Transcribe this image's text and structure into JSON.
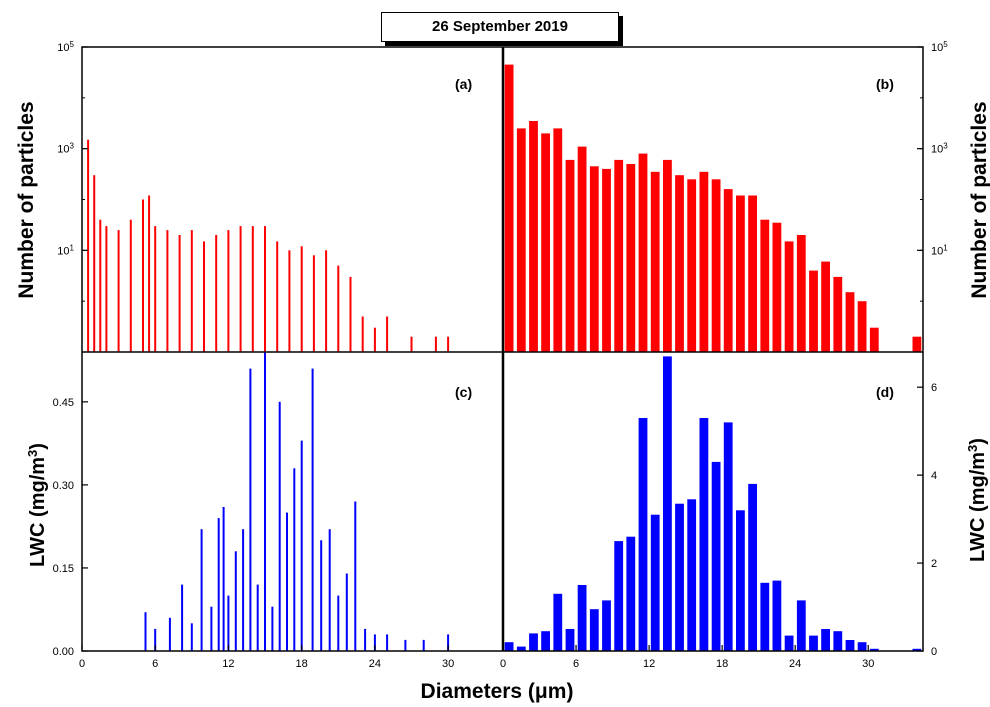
{
  "figure": {
    "title": "26 September 2019",
    "xlabel": "Diameters (μm)",
    "ylabel_left_top": "Number of particles",
    "ylabel_right_top": "Number of particles",
    "ylabel_left_bottom": "LWC (mg/m3)",
    "ylabel_right_bottom": "LWC (mg/m3)",
    "colors": {
      "red": "#ff0000",
      "blue": "#0000ff",
      "axes": "#000000"
    }
  },
  "chart_data": [
    {
      "panel": "(a)",
      "type": "bar",
      "scale": "log",
      "color": "#ff0000",
      "xlim": [
        0,
        34.5
      ],
      "ylim": [
        0.1,
        100000
      ],
      "yticks": [
        "10^1",
        "10^3",
        "10^5"
      ],
      "xticks": [
        0,
        6,
        12,
        18,
        24,
        30
      ],
      "x": [
        0.5,
        1,
        1.5,
        2,
        3,
        4,
        5,
        5.5,
        6,
        7,
        8,
        9,
        10,
        11,
        12,
        13,
        14,
        15,
        16,
        17,
        18,
        19,
        20,
        21,
        22,
        23,
        24,
        25,
        27,
        29,
        30
      ],
      "values": [
        1500,
        300,
        40,
        30,
        25,
        40,
        100,
        120,
        30,
        25,
        20,
        25,
        15,
        20,
        25,
        30,
        30,
        30,
        15,
        10,
        12,
        8,
        10,
        5,
        3,
        0.5,
        0.3,
        0.5,
        0.2,
        0.2,
        0.2
      ]
    },
    {
      "panel": "(b)",
      "type": "bar",
      "scale": "log",
      "color": "#ff0000",
      "xlim": [
        0,
        34.5
      ],
      "ylim": [
        0.1,
        100000
      ],
      "yticks": [
        "10^1",
        "10^3",
        "10^5"
      ],
      "xticks": [
        0,
        6,
        12,
        18,
        24,
        30
      ],
      "bin_width": 1,
      "x": [
        0.5,
        1.5,
        2.5,
        3.5,
        4.5,
        5.5,
        6.5,
        7.5,
        8.5,
        9.5,
        10.5,
        11.5,
        12.5,
        13.5,
        14.5,
        15.5,
        16.5,
        17.5,
        18.5,
        19.5,
        20.5,
        21.5,
        22.5,
        23.5,
        24.5,
        25.5,
        26.5,
        27.5,
        28.5,
        29.5,
        30.5,
        34
      ],
      "values": [
        45000,
        2500,
        3500,
        2000,
        2500,
        600,
        1100,
        450,
        400,
        600,
        500,
        800,
        350,
        600,
        300,
        250,
        350,
        250,
        160,
        120,
        120,
        40,
        35,
        15,
        20,
        4,
        6,
        3,
        1.5,
        1,
        0.3,
        0.2
      ]
    },
    {
      "panel": "(c)",
      "type": "bar",
      "color": "#0000ff",
      "xlim": [
        0,
        34.5
      ],
      "ylim": [
        0,
        0.54
      ],
      "yticks": [
        "0.00",
        "0.15",
        "0.30",
        "0.45"
      ],
      "xticks": [
        0,
        6,
        12,
        18,
        24,
        30
      ],
      "x": [
        5.2,
        6.0,
        7.2,
        8.2,
        9.0,
        9.8,
        10.6,
        11.2,
        11.6,
        12.0,
        12.6,
        13.2,
        13.8,
        14.4,
        15.0,
        15.6,
        16.2,
        16.8,
        17.4,
        18.0,
        18.9,
        19.6,
        20.3,
        21.0,
        21.7,
        22.4,
        23.2,
        24.0,
        25.0,
        26.5,
        28.0,
        30.0
      ],
      "values": [
        0.07,
        0.04,
        0.06,
        0.12,
        0.05,
        0.22,
        0.08,
        0.24,
        0.26,
        0.1,
        0.18,
        0.22,
        0.51,
        0.12,
        0.54,
        0.08,
        0.45,
        0.25,
        0.33,
        0.38,
        0.51,
        0.2,
        0.22,
        0.1,
        0.14,
        0.27,
        0.04,
        0.03,
        0.03,
        0.02,
        0.02,
        0.03
      ]
    },
    {
      "panel": "(d)",
      "type": "bar",
      "color": "#0000ff",
      "xlim": [
        0,
        34.5
      ],
      "ylim": [
        0,
        6.8
      ],
      "yticks": [
        "0",
        "2",
        "4",
        "6"
      ],
      "xticks": [
        0,
        6,
        12,
        18,
        24,
        30
      ],
      "bin_width": 1,
      "x": [
        0.5,
        1.5,
        2.5,
        3.5,
        4.5,
        5.5,
        6.5,
        7.5,
        8.5,
        9.5,
        10.5,
        11.5,
        12.5,
        13.5,
        14.5,
        15.5,
        16.5,
        17.5,
        18.5,
        19.5,
        20.5,
        21.5,
        22.5,
        23.5,
        24.5,
        25.5,
        26.5,
        27.5,
        28.5,
        29.5,
        30.5,
        34
      ],
      "values": [
        0.2,
        0.1,
        0.4,
        0.45,
        1.3,
        0.5,
        1.5,
        0.95,
        1.15,
        2.5,
        2.6,
        5.3,
        3.1,
        6.7,
        3.35,
        3.45,
        5.3,
        4.3,
        5.2,
        3.2,
        3.8,
        1.55,
        1.6,
        0.35,
        1.15,
        0.35,
        0.5,
        0.45,
        0.25,
        0.2,
        0.05,
        0.05
      ]
    }
  ]
}
